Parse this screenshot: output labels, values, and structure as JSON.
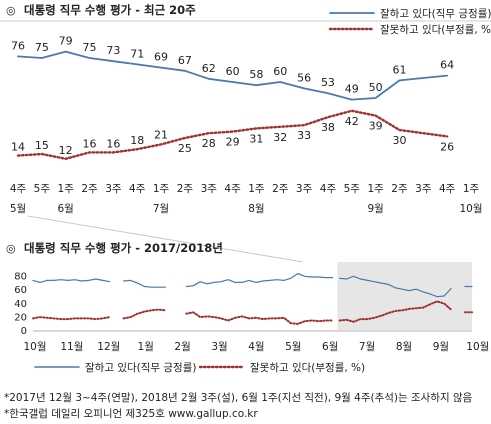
{
  "chart_data": [
    {
      "type": "line",
      "title": "대통령 직무 수행 평가 - 최근 20주",
      "title_mark": "◎",
      "categories": [
        {
          "week": "4주",
          "month": "5월"
        },
        {
          "week": "5주",
          "month": ""
        },
        {
          "week": "1주",
          "month": "6월"
        },
        {
          "week": "2주",
          "month": ""
        },
        {
          "week": "3주",
          "month": ""
        },
        {
          "week": "4주",
          "month": ""
        },
        {
          "week": "1주",
          "month": "7월"
        },
        {
          "week": "2주",
          "month": ""
        },
        {
          "week": "3주",
          "month": ""
        },
        {
          "week": "4주",
          "month": ""
        },
        {
          "week": "1주",
          "month": "8월"
        },
        {
          "week": "2주",
          "month": ""
        },
        {
          "week": "3주",
          "month": ""
        },
        {
          "week": "4주",
          "month": ""
        },
        {
          "week": "5주",
          "month": ""
        },
        {
          "week": "1주",
          "month": "9월"
        },
        {
          "week": "2주",
          "month": ""
        },
        {
          "week": "3주",
          "month": ""
        },
        {
          "week": "4주",
          "month": ""
        },
        {
          "week": "1주",
          "month": "10월"
        }
      ],
      "series": [
        {
          "name": "잘하고 있다(직무 긍정률)",
          "color": "#4a78b0",
          "style": "solid",
          "values": [
            76,
            75,
            79,
            75,
            73,
            71,
            69,
            67,
            62,
            60,
            58,
            60,
            56,
            53,
            49,
            50,
            61,
            null,
            64,
            null
          ],
          "labels": [
            "76",
            "75",
            "79",
            "75",
            "73",
            "71",
            "69",
            "67",
            "62",
            "60",
            "58",
            "60",
            "56",
            "53",
            "49",
            "50",
            "61",
            "",
            "64",
            ""
          ]
        },
        {
          "name": "잘못하고 있다(부정률, %)",
          "color": "#a0302c",
          "style": "dotted",
          "values": [
            14,
            15,
            12,
            16,
            16,
            18,
            21,
            25,
            28,
            29,
            31,
            32,
            33,
            38,
            42,
            39,
            30,
            null,
            26,
            null
          ],
          "labels": [
            "14",
            "15",
            "12",
            "16",
            "16",
            "18",
            "21",
            "25",
            "28",
            "29",
            "31",
            "32",
            "33",
            "38",
            "42",
            "39",
            "30",
            "",
            "26",
            ""
          ]
        }
      ],
      "ylim": [
        0,
        100
      ],
      "grid": false,
      "legend_position": "top-right"
    },
    {
      "type": "line",
      "title": "대통령 직무 수행 평가 - 2017/2018년",
      "title_mark": "◎",
      "months": [
        "10월",
        "11월",
        "12월",
        "1월",
        "2월",
        "3월",
        "4월",
        "5월",
        "6월",
        "7월",
        "8월",
        "9월",
        "10월"
      ],
      "yticks": [
        "0",
        "20",
        "40",
        "60",
        "80"
      ],
      "ylim": [
        0,
        100
      ],
      "highlighted_range": "last 20 weeks (shaded)",
      "series": [
        {
          "name": "잘하고 있다(직무 긍정률)",
          "color": "#4a78b0",
          "style": "solid",
          "segments": [
            [
              [
                0,
                73
              ],
              [
                1,
                70
              ],
              [
                2,
                73
              ],
              [
                3,
                73
              ],
              [
                4,
                74
              ],
              [
                5,
                73
              ],
              [
                6,
                74
              ],
              [
                7,
                72
              ],
              [
                8,
                73
              ],
              [
                9,
                75
              ],
              [
                10,
                73
              ],
              [
                11,
                71
              ]
            ],
            [
              [
                13,
                72
              ],
              [
                14,
                73
              ],
              [
                15,
                69
              ],
              [
                16,
                64
              ],
              [
                17,
                63
              ],
              [
                18,
                63
              ],
              [
                19,
                63
              ]
            ],
            [
              [
                22,
                64
              ],
              [
                23,
                65
              ],
              [
                24,
                71
              ],
              [
                25,
                68
              ],
              [
                26,
                70
              ],
              [
                27,
                71
              ],
              [
                28,
                74
              ],
              [
                29,
                70
              ],
              [
                30,
                70
              ],
              [
                31,
                73
              ],
              [
                32,
                70
              ],
              [
                33,
                72
              ],
              [
                34,
                73
              ],
              [
                35,
                74
              ],
              [
                36,
                73
              ],
              [
                37,
                76
              ],
              [
                38,
                83
              ],
              [
                39,
                79
              ],
              [
                40,
                78
              ],
              [
                41,
                78
              ],
              [
                42,
                77
              ],
              [
                43,
                77
              ]
            ],
            [
              [
                44,
                76
              ],
              [
                45,
                75
              ],
              [
                46,
                79
              ],
              [
                47,
                75
              ],
              [
                48,
                73
              ],
              [
                49,
                71
              ],
              [
                50,
                69
              ],
              [
                51,
                67
              ],
              [
                52,
                62
              ],
              [
                53,
                60
              ],
              [
                54,
                58
              ],
              [
                55,
                60
              ],
              [
                56,
                56
              ],
              [
                57,
                53
              ],
              [
                58,
                49
              ],
              [
                59,
                50
              ],
              [
                60,
                61
              ]
            ],
            [
              [
                62,
                64
              ],
              [
                63,
                64
              ]
            ]
          ]
        },
        {
          "name": "잘못하고 있다(부정률, %)",
          "color": "#a0302c",
          "style": "dotted",
          "segments": [
            [
              [
                0,
                17
              ],
              [
                1,
                19
              ],
              [
                2,
                18
              ],
              [
                3,
                17
              ],
              [
                4,
                16
              ],
              [
                5,
                16
              ],
              [
                6,
                17
              ],
              [
                7,
                17
              ],
              [
                8,
                17
              ],
              [
                9,
                16
              ],
              [
                10,
                17
              ],
              [
                11,
                19
              ]
            ],
            [
              [
                13,
                17
              ],
              [
                14,
                19
              ],
              [
                15,
                24
              ],
              [
                16,
                27
              ],
              [
                17,
                29
              ],
              [
                18,
                30
              ],
              [
                19,
                29
              ]
            ],
            [
              [
                22,
                24
              ],
              [
                23,
                26
              ],
              [
                24,
                19
              ],
              [
                25,
                20
              ],
              [
                26,
                19
              ],
              [
                27,
                17
              ],
              [
                28,
                14
              ],
              [
                29,
                18
              ],
              [
                30,
                20
              ],
              [
                31,
                17
              ],
              [
                32,
                18
              ],
              [
                33,
                16
              ],
              [
                34,
                17
              ],
              [
                35,
                17
              ],
              [
                36,
                18
              ],
              [
                37,
                10
              ],
              [
                38,
                9
              ],
              [
                39,
                13
              ],
              [
                40,
                14
              ],
              [
                41,
                13
              ],
              [
                42,
                14
              ],
              [
                43,
                14
              ]
            ],
            [
              [
                44,
                14
              ],
              [
                45,
                15
              ],
              [
                46,
                12
              ],
              [
                47,
                16
              ],
              [
                48,
                16
              ],
              [
                49,
                18
              ],
              [
                50,
                21
              ],
              [
                51,
                25
              ],
              [
                52,
                28
              ],
              [
                53,
                29
              ],
              [
                54,
                31
              ],
              [
                55,
                32
              ],
              [
                56,
                33
              ],
              [
                57,
                38
              ],
              [
                58,
                42
              ],
              [
                59,
                39
              ],
              [
                60,
                30
              ]
            ],
            [
              [
                62,
                26
              ],
              [
                63,
                26
              ]
            ]
          ]
        }
      ]
    }
  ],
  "notes": [
    "*2017년 12월 3~4주(연말), 2018년 2월 3주(설), 6월 1주(지선 직전), 9월 4주(추석)는 조사하지 않음",
    "*한국갤럽 데일리 오피니언 제325호 www.gallup.co.kr"
  ]
}
